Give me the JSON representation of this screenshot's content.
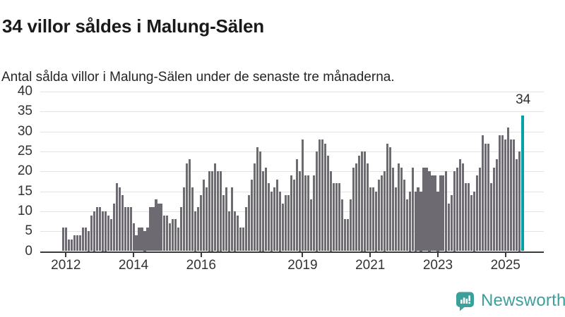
{
  "header": {
    "title": "34 villor såldes i Malung-Sälen",
    "subtitle": "Antal sålda villor i Malung-Sälen under de senaste tre månaderna."
  },
  "chart_data": {
    "type": "bar",
    "title": "34 villor såldes i Malung-Sälen",
    "subtitle": "Antal sålda villor i Malung-Sälen under de senaste tre månaderna.",
    "x_start": "2011-12",
    "x_end": "2025-07",
    "x_unit": "month",
    "values": [
      6,
      6,
      3,
      3,
      4,
      4,
      4,
      6,
      6,
      5,
      9,
      10,
      11,
      11,
      10,
      10,
      9,
      8,
      12,
      17,
      16,
      14,
      11,
      11,
      11,
      7,
      4,
      6,
      6,
      5,
      6,
      11,
      11,
      13,
      12,
      12,
      9,
      9,
      7,
      8,
      8,
      6,
      11,
      16,
      22,
      23,
      16,
      10,
      11,
      14,
      18,
      16,
      20,
      20,
      22,
      20,
      20,
      14,
      16,
      10,
      16,
      10,
      9,
      6,
      6,
      11,
      14,
      18,
      22,
      26,
      25,
      20,
      21,
      17,
      15,
      16,
      18,
      15,
      12,
      14,
      14,
      19,
      18,
      23,
      20,
      28,
      19,
      19,
      13,
      19,
      25,
      28,
      28,
      27,
      24,
      20,
      17,
      17,
      17,
      13,
      8,
      8,
      13,
      21,
      22,
      24,
      25,
      25,
      22,
      16,
      16,
      15,
      18,
      19,
      20,
      27,
      26,
      21,
      16,
      22,
      21,
      18,
      13,
      15,
      21,
      15,
      16,
      15,
      21,
      21,
      20,
      19,
      19,
      15,
      19,
      19,
      20,
      12,
      14,
      20,
      21,
      23,
      22,
      17,
      17,
      14,
      15,
      19,
      21,
      29,
      27,
      27,
      17,
      21,
      23,
      29,
      29,
      28,
      31,
      28,
      28,
      23,
      25,
      34
    ],
    "highlight": {
      "index": 163,
      "label": "34",
      "color": "#00a2a5"
    },
    "bar_color": "#6e6a72",
    "ylim": [
      0,
      40
    ],
    "yticks": [
      0,
      5,
      10,
      15,
      20,
      25,
      30,
      35,
      40
    ],
    "xticks": [
      {
        "label": "2012",
        "month_index": 1
      },
      {
        "label": "2014",
        "month_index": 25
      },
      {
        "label": "2016",
        "month_index": 49
      },
      {
        "label": "2019",
        "month_index": 85
      },
      {
        "label": "2021",
        "month_index": 109
      },
      {
        "label": "2023",
        "month_index": 133
      },
      {
        "label": "2025",
        "month_index": 157
      }
    ],
    "grid": true,
    "legend": false,
    "gridline_color": "#e2e2e2",
    "axis_color": "#3b3b3b",
    "label_color": "#333333"
  },
  "footer": {
    "brand": "Newsworthy",
    "brand_color": "#3ba09c",
    "icon": "bar-chart-speech-bubble-icon"
  }
}
